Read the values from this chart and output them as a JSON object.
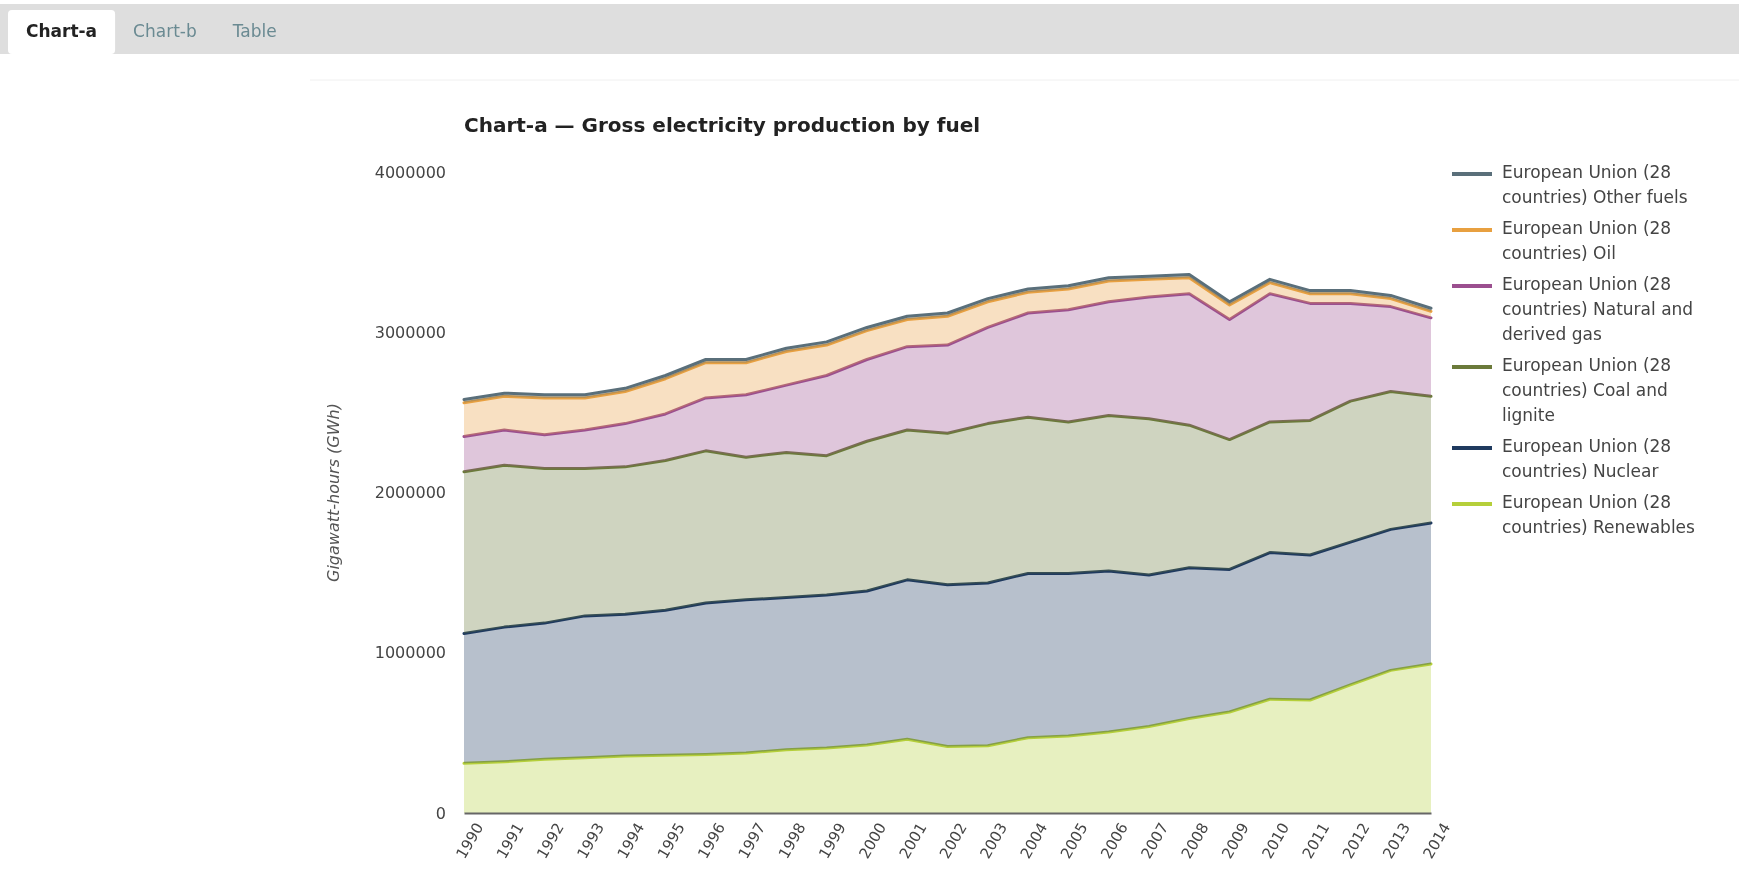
{
  "chart_data": {
    "type": "area",
    "title": "Chart-a — Gross electricity production by fuel",
    "ylabel": "Gigawatt-hours (GWh)",
    "annotations": [
      "Chart-a",
      "Chart-b",
      "Table"
    ],
    "categories": [
      "1990",
      "1991",
      "1992",
      "1993",
      "1994",
      "1995",
      "1996",
      "1997",
      "1998",
      "1999",
      "2000",
      "2001",
      "2002",
      "2003",
      "2004",
      "2005",
      "2006",
      "2007",
      "2008",
      "2009",
      "2010",
      "2011",
      "2012",
      "2013",
      "2014"
    ],
    "stacked": true,
    "legend": "right",
    "grid": false,
    "marker": "none",
    "line_style": "solid",
    "ylim": [
      0,
      4000000
    ],
    "yticks": [
      0,
      1000000,
      2000000,
      3000000,
      4000000
    ],
    "series": [
      {
        "name": "European Union (28 countries) Renewables",
        "color": "#b5cf3a",
        "values": [
          310000,
          320000,
          335000,
          345000,
          355000,
          360000,
          365000,
          375000,
          395000,
          405000,
          425000,
          460000,
          415000,
          420000,
          470000,
          480000,
          505000,
          540000,
          590000,
          630000,
          710000,
          705000,
          800000,
          890000,
          930000
        ]
      },
      {
        "name": "European Union (28 countries) Nuclear",
        "color": "#1f3a5f",
        "values": [
          810000,
          840000,
          850000,
          885000,
          885000,
          905000,
          945000,
          955000,
          950000,
          955000,
          960000,
          995000,
          1010000,
          1015000,
          1025000,
          1015000,
          1005000,
          945000,
          940000,
          890000,
          915000,
          905000,
          890000,
          880000,
          880000
        ]
      },
      {
        "name": "European Union (28 countries) Coal and lignite",
        "color": "#6b7a3a",
        "values": [
          1010000,
          1010000,
          965000,
          920000,
          920000,
          935000,
          950000,
          890000,
          905000,
          870000,
          935000,
          935000,
          945000,
          995000,
          975000,
          945000,
          970000,
          975000,
          890000,
          810000,
          815000,
          840000,
          880000,
          860000,
          790000
        ]
      },
      {
        "name": "European Union (28 countries) Natural and derived gas",
        "color": "#9b4f8f",
        "values": [
          220000,
          220000,
          210000,
          240000,
          270000,
          290000,
          330000,
          390000,
          420000,
          500000,
          510000,
          520000,
          550000,
          600000,
          650000,
          700000,
          710000,
          760000,
          820000,
          750000,
          800000,
          730000,
          610000,
          530000,
          490000
        ]
      },
      {
        "name": "European Union (28 countries) Oil",
        "color": "#e8a040",
        "values": [
          210000,
          210000,
          230000,
          200000,
          200000,
          220000,
          220000,
          200000,
          210000,
          190000,
          180000,
          170000,
          180000,
          160000,
          130000,
          130000,
          130000,
          110000,
          100000,
          90000,
          70000,
          60000,
          60000,
          50000,
          40000
        ]
      },
      {
        "name": "European Union (28 countries) Other fuels",
        "color": "#5a6f7a",
        "values": [
          20000,
          20000,
          20000,
          20000,
          20000,
          20000,
          20000,
          20000,
          20000,
          20000,
          20000,
          20000,
          20000,
          20000,
          20000,
          20000,
          20000,
          20000,
          20000,
          20000,
          20000,
          20000,
          20000,
          20000,
          20000
        ]
      }
    ]
  }
}
